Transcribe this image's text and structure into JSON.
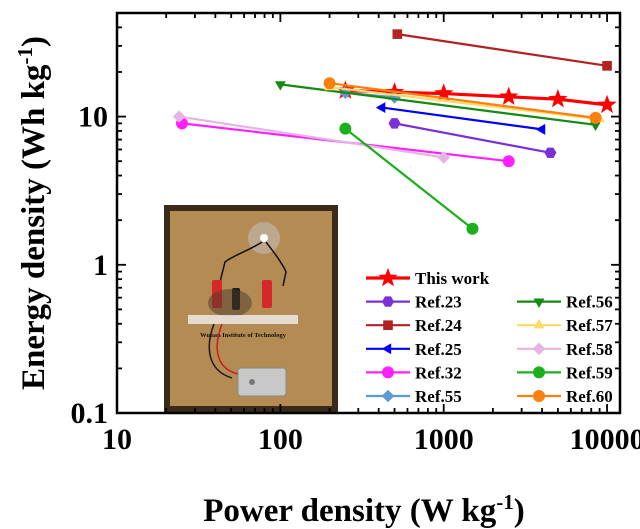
{
  "chart_data": {
    "type": "scatter",
    "xscale": "log",
    "yscale": "log",
    "xlim": [
      10,
      12000
    ],
    "ylim": [
      0.1,
      50
    ],
    "xticks": [
      10,
      100,
      1000,
      10000
    ],
    "yticks": [
      0.1,
      1,
      10
    ],
    "xtick_labels": [
      "10",
      "100",
      "1000",
      "10000"
    ],
    "ytick_labels": [
      "0.1",
      "1",
      "10"
    ],
    "xlabel": "Power density (W kg",
    "xlabel_sup": "-1",
    "xlabel_end": ")",
    "ylabel": "Energy density (Wh kg",
    "ylabel_sup": "-1",
    "ylabel_end": ")",
    "legend_position": "bottom-right",
    "inset": "photo of a glowing blue LED powered by the device, with Wuhan Institute of Technology logo",
    "inset_text": "Wuhan Institute of Technology",
    "series": [
      {
        "name": "This work",
        "color": "#ff0000",
        "marker": "star",
        "points": [
          [
            250,
            15.0
          ],
          [
            500,
            14.6
          ],
          [
            1000,
            14.3
          ],
          [
            2500,
            13.6
          ],
          [
            5000,
            13.1
          ],
          [
            10000,
            12.0
          ]
        ]
      },
      {
        "name": "Ref.23",
        "color": "#7b2fd6",
        "marker": "hexagon",
        "points": [
          [
            500,
            9.0
          ],
          [
            4500,
            5.7
          ]
        ]
      },
      {
        "name": "Ref.24",
        "color": "#b22222",
        "marker": "square",
        "points": [
          [
            520,
            36.0
          ],
          [
            10000,
            22.0
          ]
        ]
      },
      {
        "name": "Ref.25",
        "color": "#0000ff",
        "marker": "triangle-left",
        "points": [
          [
            420,
            11.5
          ],
          [
            4000,
            8.2
          ]
        ]
      },
      {
        "name": "Ref.32",
        "color": "#ff1fff",
        "marker": "circle",
        "points": [
          [
            25,
            9.0
          ],
          [
            2500,
            5.0
          ]
        ]
      },
      {
        "name": "Ref.55",
        "color": "#5b9bd5",
        "marker": "diamond",
        "points": [
          [
            250,
            14.5
          ],
          [
            500,
            13.5
          ]
        ]
      },
      {
        "name": "Ref.56",
        "color": "#138a13",
        "marker": "triangle-down",
        "points": [
          [
            100,
            16.5
          ],
          [
            8500,
            8.8
          ]
        ]
      },
      {
        "name": "Ref.57",
        "color": "#ffd966",
        "marker": "triangle-up",
        "points": [
          [
            200,
            15.8
          ],
          [
            9000,
            9.6
          ]
        ]
      },
      {
        "name": "Ref.58",
        "color": "#e6b3e6",
        "marker": "diamond",
        "points": [
          [
            24,
            10.0
          ],
          [
            1000,
            5.3
          ]
        ]
      },
      {
        "name": "Ref.59",
        "color": "#1cb01c",
        "marker": "circle",
        "points": [
          [
            250,
            8.3
          ],
          [
            1500,
            1.75
          ]
        ]
      },
      {
        "name": "Ref.60",
        "color": "#ff7f0e",
        "marker": "circle",
        "points": [
          [
            200,
            16.8
          ],
          [
            8500,
            9.8
          ]
        ]
      }
    ]
  }
}
